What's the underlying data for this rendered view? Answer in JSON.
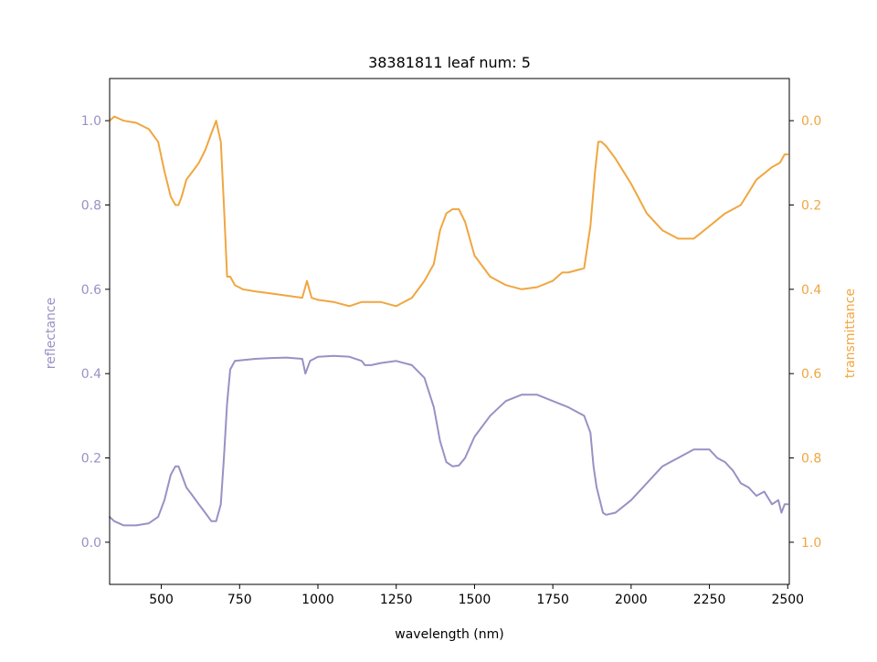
{
  "chart_data": {
    "type": "line",
    "title": "38381811 leaf num: 5",
    "xlabel": "wavelength (nm)",
    "ylabel_left": "reflectance",
    "ylabel_right": "transmittance",
    "xlim": [
      335,
      2505
    ],
    "ylim_left": [
      -0.1,
      1.1
    ],
    "ylim_right": [
      1.1,
      -0.1
    ],
    "right_axis_inverted": true,
    "grid": false,
    "legend": "none",
    "x_ticks": [
      500,
      750,
      1000,
      1250,
      1500,
      1750,
      2000,
      2250,
      2500
    ],
    "y_ticks_left": [
      0.0,
      0.2,
      0.4,
      0.6,
      0.8,
      1.0
    ],
    "y_ticks_right": [
      0.0,
      0.2,
      0.4,
      0.6,
      0.8,
      1.0
    ],
    "x_tick_labels": [
      "500",
      "750",
      "1000",
      "1250",
      "1500",
      "1750",
      "2000",
      "2250",
      "2500"
    ],
    "y_tick_labels_left": [
      "0.0",
      "0.2",
      "0.4",
      "0.6",
      "0.8",
      "1.0"
    ],
    "y_tick_labels_right": [
      "0.0",
      "0.2",
      "0.4",
      "0.6",
      "0.8",
      "1.0"
    ],
    "colors": {
      "reflectance": "#9891c4",
      "transmittance": "#f0a640",
      "axis": "#000000"
    },
    "series": [
      {
        "axis": "left",
        "color": "#9891c4",
        "x": [
          335,
          350,
          380,
          420,
          460,
          490,
          510,
          530,
          545,
          555,
          565,
          580,
          600,
          620,
          640,
          660,
          675,
          690,
          700,
          710,
          720,
          735,
          760,
          800,
          850,
          900,
          950,
          960,
          975,
          1000,
          1050,
          1100,
          1140,
          1150,
          1170,
          1200,
          1250,
          1300,
          1340,
          1370,
          1390,
          1410,
          1430,
          1450,
          1470,
          1500,
          1550,
          1600,
          1650,
          1700,
          1750,
          1800,
          1850,
          1870,
          1880,
          1890,
          1900,
          1910,
          1920,
          1950,
          2000,
          2050,
          2100,
          2150,
          2200,
          2225,
          2250,
          2275,
          2300,
          2325,
          2350,
          2375,
          2400,
          2425,
          2450,
          2470,
          2480,
          2490,
          2500
        ],
        "values": [
          0.06,
          0.05,
          0.04,
          0.04,
          0.045,
          0.06,
          0.1,
          0.16,
          0.18,
          0.18,
          0.16,
          0.13,
          0.11,
          0.09,
          0.07,
          0.05,
          0.05,
          0.09,
          0.2,
          0.33,
          0.41,
          0.43,
          0.432,
          0.435,
          0.437,
          0.438,
          0.435,
          0.4,
          0.43,
          0.44,
          0.442,
          0.44,
          0.43,
          0.42,
          0.42,
          0.425,
          0.43,
          0.42,
          0.39,
          0.32,
          0.24,
          0.19,
          0.18,
          0.182,
          0.2,
          0.25,
          0.3,
          0.335,
          0.35,
          0.35,
          0.335,
          0.32,
          0.3,
          0.26,
          0.18,
          0.13,
          0.1,
          0.07,
          0.065,
          0.07,
          0.1,
          0.14,
          0.18,
          0.2,
          0.22,
          0.22,
          0.22,
          0.2,
          0.19,
          0.17,
          0.14,
          0.13,
          0.11,
          0.12,
          0.09,
          0.1,
          0.07,
          0.09,
          0.09
        ]
      },
      {
        "axis": "right",
        "color": "#f0a640",
        "x": [
          335,
          350,
          380,
          420,
          460,
          490,
          510,
          530,
          545,
          555,
          565,
          580,
          600,
          620,
          640,
          660,
          675,
          690,
          700,
          710,
          720,
          735,
          760,
          800,
          850,
          900,
          950,
          965,
          980,
          1000,
          1050,
          1100,
          1140,
          1170,
          1200,
          1250,
          1300,
          1340,
          1370,
          1390,
          1410,
          1430,
          1450,
          1470,
          1500,
          1550,
          1600,
          1650,
          1700,
          1750,
          1780,
          1800,
          1850,
          1870,
          1885,
          1895,
          1905,
          1920,
          1950,
          2000,
          2050,
          2100,
          2150,
          2175,
          2200,
          2250,
          2300,
          2350,
          2400,
          2450,
          2475,
          2490,
          2500
        ],
        "values": [
          0.0,
          -0.01,
          0.0,
          0.005,
          0.02,
          0.05,
          0.12,
          0.18,
          0.2,
          0.2,
          0.18,
          0.14,
          0.12,
          0.1,
          0.07,
          0.03,
          0.0,
          0.05,
          0.2,
          0.37,
          0.37,
          0.39,
          0.4,
          0.405,
          0.41,
          0.415,
          0.42,
          0.38,
          0.42,
          0.425,
          0.43,
          0.44,
          0.43,
          0.43,
          0.43,
          0.44,
          0.42,
          0.38,
          0.34,
          0.26,
          0.22,
          0.21,
          0.21,
          0.24,
          0.32,
          0.37,
          0.39,
          0.4,
          0.395,
          0.38,
          0.36,
          0.36,
          0.35,
          0.25,
          0.12,
          0.05,
          0.05,
          0.06,
          0.09,
          0.15,
          0.22,
          0.26,
          0.28,
          0.28,
          0.28,
          0.25,
          0.22,
          0.2,
          0.14,
          0.11,
          0.1,
          0.08,
          0.08
        ]
      }
    ]
  }
}
